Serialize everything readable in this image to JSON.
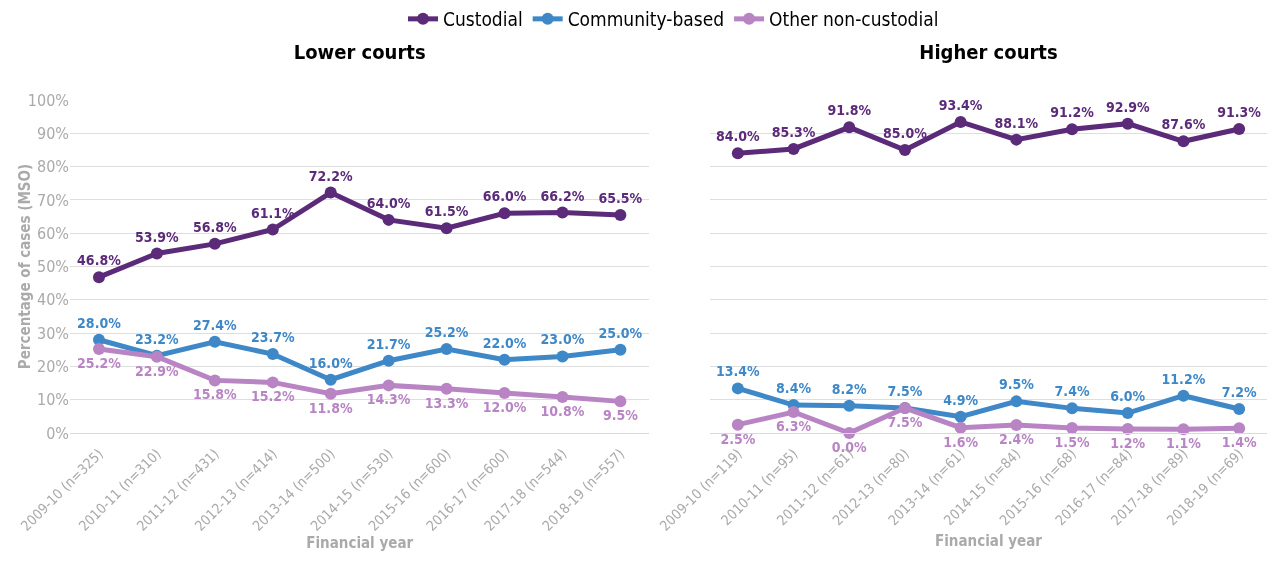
{
  "chart_data": [
    {
      "type": "line",
      "title": "Lower courts",
      "xlabel": "Financial year",
      "ylabel": "Percentage of cases (MSO)",
      "categories": [
        "2009-10 (n=325)",
        "2010-11 (n=310)",
        "2011-12 (n=431)",
        "2012-13 (n=414)",
        "2013-14 (n=500)",
        "2014-15 (n=530)",
        "2015-16 (n=600)",
        "2016-17 (n=600)",
        "2017-18 (n=544)",
        "2018-19 (n=557)"
      ],
      "series": [
        {
          "name": "Custodial",
          "color": "#5b2a78",
          "values": [
            46.8,
            53.9,
            56.8,
            61.1,
            72.2,
            64.0,
            61.5,
            66.0,
            66.2,
            65.5
          ],
          "value_labels": [
            "46.8%",
            "53.9%",
            "56.8%",
            "61.1%",
            "72.2%",
            "64.0%",
            "61.5%",
            "66.0%",
            "66.2%",
            "65.5%"
          ]
        },
        {
          "name": "Community-based",
          "color": "#3f88c8",
          "values": [
            28.0,
            23.2,
            27.4,
            23.7,
            16.0,
            21.7,
            25.2,
            22.0,
            23.0,
            25.0
          ],
          "value_labels": [
            "28.0%",
            "23.2%",
            "27.4%",
            "23.7%",
            "16.0%",
            "21.7%",
            "25.2%",
            "22.0%",
            "23.0%",
            "25.0%"
          ]
        },
        {
          "name": "Other non-custodial",
          "color": "#b884c4",
          "values": [
            25.2,
            22.9,
            15.8,
            15.2,
            11.8,
            14.3,
            13.3,
            12.0,
            10.8,
            9.5
          ],
          "value_labels": [
            "25.2%",
            "22.9%",
            "15.8%",
            "15.2%",
            "11.8%",
            "14.3%",
            "13.3%",
            "12.0%",
            "10.8%",
            "9.5%"
          ]
        }
      ],
      "ylim": [
        0,
        100
      ],
      "yticks": [
        {
          "value": 0,
          "label": "0%"
        },
        {
          "value": 10,
          "label": "10%"
        },
        {
          "value": 20,
          "label": "20%"
        },
        {
          "value": 30,
          "label": "30%"
        },
        {
          "value": 40,
          "label": "40%"
        },
        {
          "value": 50,
          "label": "50%"
        },
        {
          "value": 60,
          "label": "60%"
        },
        {
          "value": 70,
          "label": "70%"
        },
        {
          "value": 80,
          "label": "80%"
        },
        {
          "value": 90,
          "label": "90%"
        },
        {
          "value": 100,
          "label": "100%"
        }
      ],
      "grid": "y",
      "legend": "top",
      "marker": "circle",
      "line_style": "solid"
    },
    {
      "type": "line",
      "title": "Higher courts",
      "xlabel": "Financial year",
      "categories": [
        "2009-10 (n=119)",
        "2010-11 (n=95)",
        "2011-12 (n=61)",
        "2012-13 (n=80)",
        "2013-14 (n=61)",
        "2014-15 (n=84)",
        "2015-16 (n=68)",
        "2016-17 (n=84)",
        "2017-18 (n=89)",
        "2018-19 (n=69)"
      ],
      "series": [
        {
          "color": "#5b2a78",
          "values": [
            84.0,
            85.3,
            91.8,
            85.0,
            93.4,
            88.1,
            91.2,
            92.9,
            87.6,
            91.3
          ],
          "value_labels": [
            "84.0%",
            "85.3%",
            "91.8%",
            "85.0%",
            "93.4%",
            "88.1%",
            "91.2%",
            "92.9%",
            "87.6%",
            "91.3%"
          ]
        },
        {
          "color": "#3f88c8",
          "values": [
            13.4,
            8.4,
            8.2,
            7.5,
            4.9,
            9.5,
            7.4,
            6.0,
            11.2,
            7.2
          ],
          "value_labels": [
            "13.4%",
            "8.4%",
            "8.2%",
            "7.5%",
            "4.9%",
            "9.5%",
            "7.4%",
            "6.0%",
            "11.2%",
            "7.2%"
          ]
        },
        {
          "color": "#b884c4",
          "values": [
            2.5,
            6.3,
            0.0,
            7.5,
            1.6,
            2.4,
            1.5,
            1.2,
            1.1,
            1.4
          ],
          "value_labels": [
            "2.5%",
            "6.3%",
            "0.0%",
            "7.5%",
            "1.6%",
            "2.4%",
            "1.5%",
            "1.2%",
            "1.1%",
            "1.4%"
          ]
        }
      ],
      "ylim": [
        0,
        100
      ],
      "yticks": [
        {
          "value": 0,
          "label": null
        },
        {
          "value": 10,
          "label": null
        },
        {
          "value": 20,
          "label": null
        },
        {
          "value": 30,
          "label": null
        },
        {
          "value": 40,
          "label": null
        },
        {
          "value": 50,
          "label": null
        },
        {
          "value": 60,
          "label": null
        },
        {
          "value": 70,
          "label": null
        },
        {
          "value": 80,
          "label": null
        },
        {
          "value": 90,
          "label": null
        },
        {
          "value": 100,
          "label": null
        }
      ],
      "tick_labels": "x",
      "grid": "y",
      "marker": "circle",
      "line_style": "solid"
    }
  ]
}
